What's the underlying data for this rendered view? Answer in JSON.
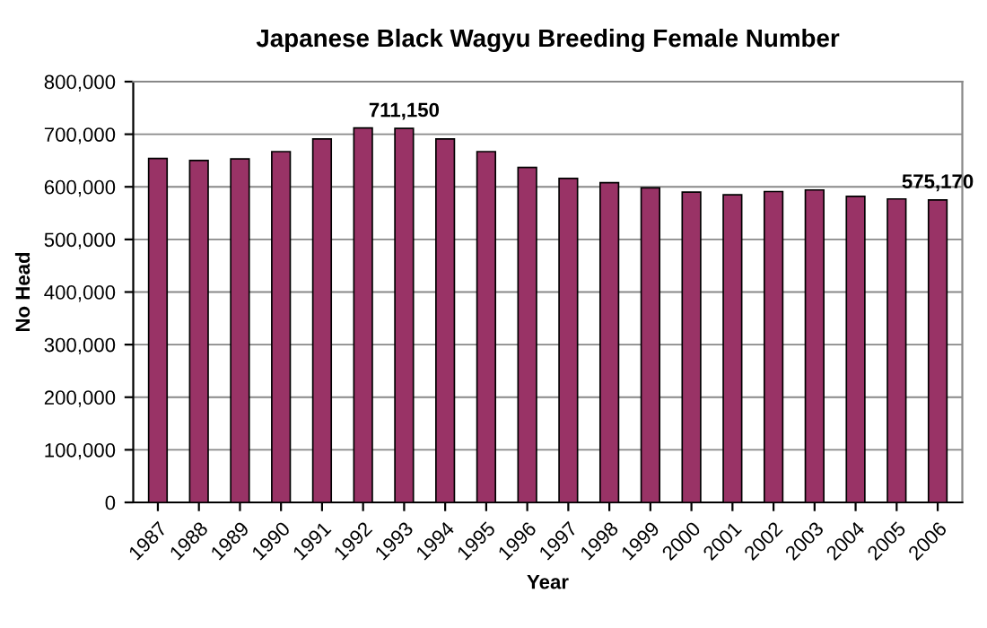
{
  "chart_data": {
    "type": "bar",
    "title": "Japanese Black Wagyu Breeding Female Number",
    "xlabel": "Year",
    "ylabel": "No Head",
    "categories": [
      "1987",
      "1988",
      "1989",
      "1990",
      "1991",
      "1992",
      "1993",
      "1994",
      "1995",
      "1996",
      "1997",
      "1998",
      "1999",
      "2000",
      "2001",
      "2002",
      "2003",
      "2004",
      "2005",
      "2006"
    ],
    "values": [
      654000,
      650000,
      653000,
      667000,
      691000,
      712000,
      711150,
      691000,
      667000,
      637000,
      616000,
      608000,
      598000,
      590000,
      585000,
      591000,
      594000,
      582000,
      577000,
      575170
    ],
    "value_labels": [
      null,
      null,
      null,
      null,
      null,
      null,
      "711,150",
      null,
      null,
      null,
      null,
      null,
      null,
      null,
      null,
      null,
      null,
      null,
      null,
      "575,170"
    ],
    "color": "#993366",
    "ylim": [
      0,
      800000
    ],
    "yticks": [
      {
        "value": 0,
        "label": "0"
      },
      {
        "value": 100000,
        "label": "100,000"
      },
      {
        "value": 200000,
        "label": "200,000"
      },
      {
        "value": 300000,
        "label": "300,000"
      },
      {
        "value": 400000,
        "label": "400,000"
      },
      {
        "value": 500000,
        "label": "500,000"
      },
      {
        "value": 600000,
        "label": "600,000"
      },
      {
        "value": 700000,
        "label": "700,000"
      },
      {
        "value": 800000,
        "label": "800,000"
      }
    ],
    "grid": "y",
    "legend": false
  }
}
